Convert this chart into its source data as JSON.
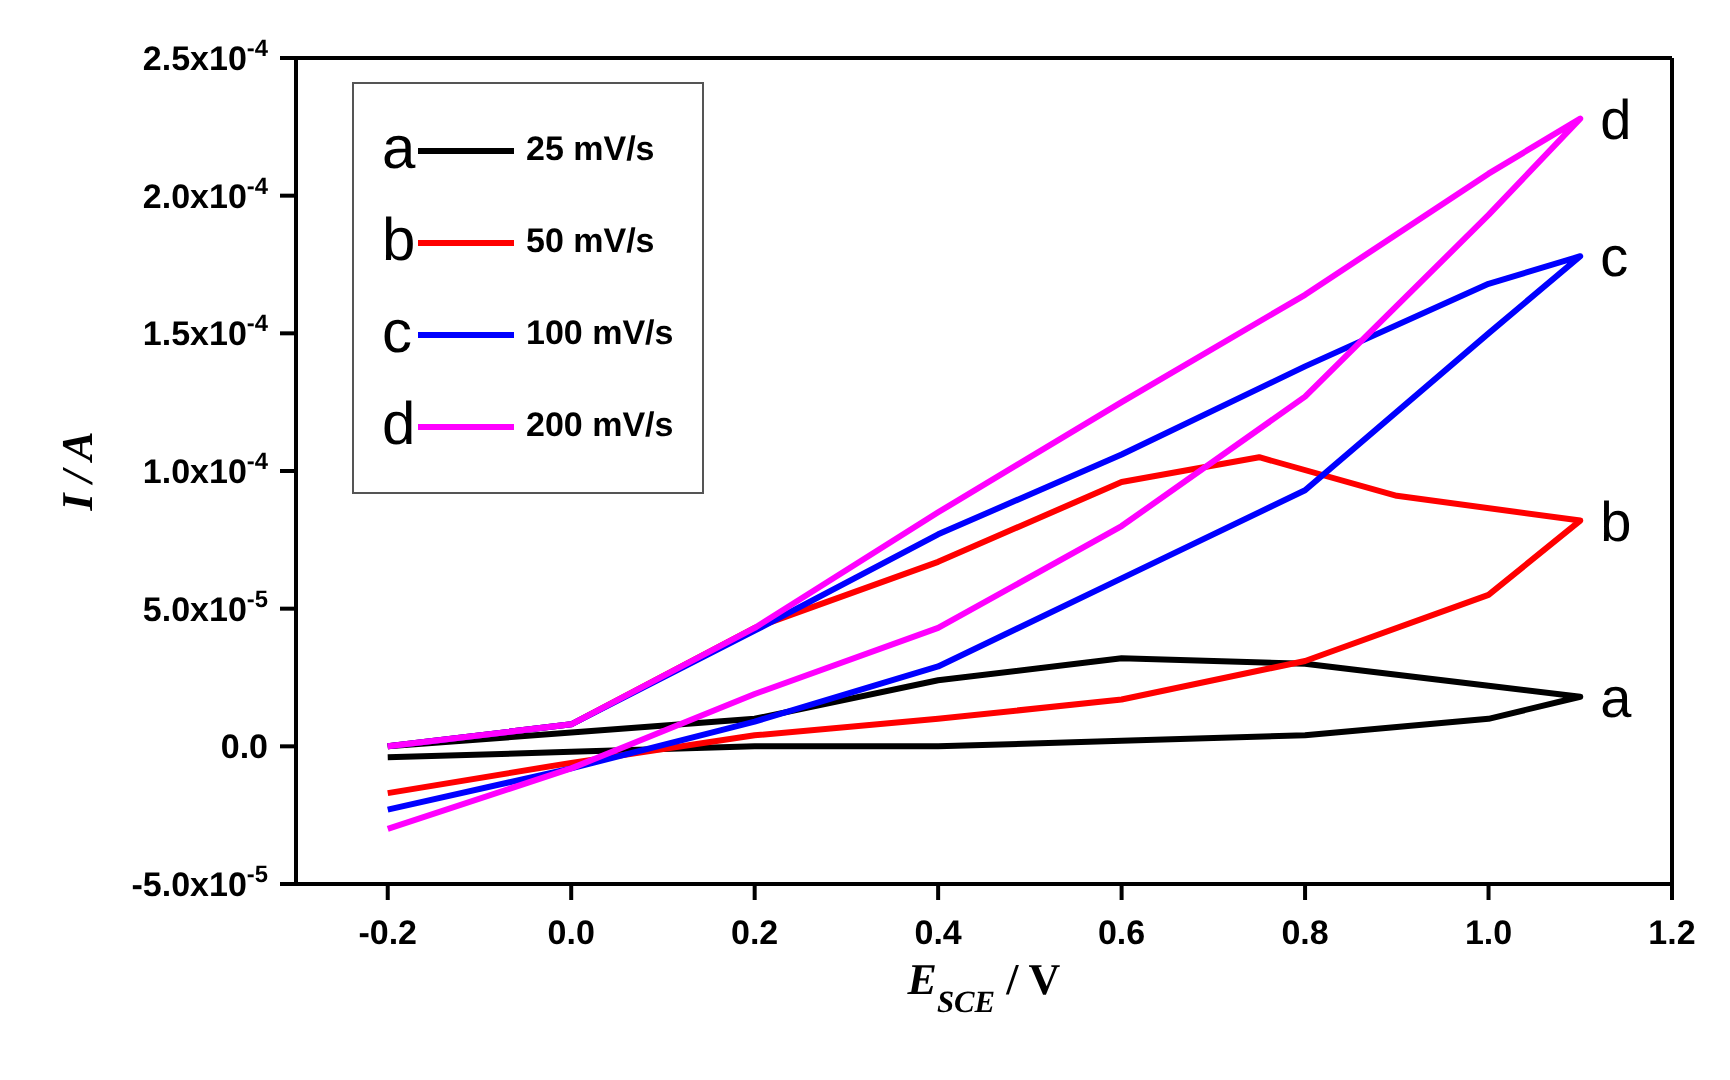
{
  "chart_data": {
    "type": "line",
    "xlabel": "E$_{SCE}$ / V",
    "ylabel": "I / A",
    "xlim": [
      -0.3,
      1.2
    ],
    "xticks": [
      {
        "value": -0.2,
        "label": "-0.2"
      },
      {
        "value": 0,
        "label": "0.0"
      },
      {
        "value": 0.2,
        "label": "0.2"
      },
      {
        "value": 0.4,
        "label": "0.4"
      },
      {
        "value": 0.6,
        "label": "0.6"
      },
      {
        "value": 0.8,
        "label": "0.8"
      },
      {
        "value": 1.0,
        "label": "1.0"
      },
      {
        "value": 1.2,
        "label": "1.2"
      }
    ],
    "ylim": [
      -5e-05,
      0.00025
    ],
    "yticks": [
      {
        "value": -5e-05,
        "label": "-5.0x10$^{-5}$"
      },
      {
        "value": 0,
        "label": "0.0"
      },
      {
        "value": 5e-05,
        "label": "5.0x10$^{-5}$"
      },
      {
        "value": 0.0001,
        "label": "1.0x10$^{-4}$"
      },
      {
        "value": 0.00015,
        "label": "1.5x10$^{-4}$"
      },
      {
        "value": 0.0002,
        "label": "2.0x10$^{-4}$"
      },
      {
        "value": 0.00025,
        "label": "2.5x10$^{-4}$"
      }
    ],
    "grid": false,
    "legend": "top left",
    "marker": "none",
    "line_style": "solid",
    "series": [
      {
        "name": "25 mV/s",
        "color": "#000000",
        "x": [
          -0.2,
          0.0,
          0.2,
          0.4,
          0.6,
          0.8,
          1.0,
          1.1,
          1.0,
          0.8,
          0.6,
          0.4,
          0.2,
          0.0,
          -0.2
        ],
        "values": [
          0,
          5e-06,
          1e-05,
          2.4e-05,
          3.2e-05,
          3e-05,
          2.2e-05,
          1.8e-05,
          1e-05,
          4e-06,
          2e-06,
          0,
          0,
          -2e-06,
          -4e-06
        ]
      },
      {
        "name": "50 mV/s",
        "color": "#ff0000",
        "x": [
          -0.2,
          0.0,
          0.2,
          0.4,
          0.6,
          0.75,
          0.9,
          1.1,
          1.0,
          0.8,
          0.6,
          0.4,
          0.2,
          0.0,
          -0.2
        ],
        "values": [
          0,
          8e-06,
          4.3e-05,
          6.7e-05,
          9.6e-05,
          0.000105,
          9.1e-05,
          8.2e-05,
          5.5e-05,
          3.1e-05,
          1.7e-05,
          1e-05,
          4e-06,
          -6e-06,
          -1.7e-05
        ]
      },
      {
        "name": "100 mV/s",
        "color": "#0000ff",
        "x": [
          -0.2,
          0.0,
          0.2,
          0.4,
          0.6,
          0.8,
          1.0,
          1.1,
          1.0,
          0.8,
          0.6,
          0.4,
          0.2,
          0.0,
          -0.2
        ],
        "values": [
          0,
          8e-06,
          4.2e-05,
          7.7e-05,
          0.000106,
          0.000138,
          0.000168,
          0.000178,
          0.00015,
          9.3e-05,
          6.1e-05,
          2.9e-05,
          9e-06,
          -8e-06,
          -2.3e-05
        ]
      },
      {
        "name": "200 mV/s",
        "color": "#ff00ff",
        "x": [
          -0.2,
          0.0,
          0.2,
          0.4,
          0.6,
          0.8,
          1.0,
          1.1,
          1.0,
          0.8,
          0.6,
          0.4,
          0.2,
          0.0,
          -0.2
        ],
        "values": [
          0,
          8e-06,
          4.3e-05,
          8.5e-05,
          0.000125,
          0.000164,
          0.000208,
          0.000228,
          0.000193,
          0.000127,
          8e-05,
          4.3e-05,
          1.9e-05,
          -8e-06,
          -3e-05
        ]
      }
    ],
    "annotations": [
      "a",
      "b",
      "c",
      "d"
    ]
  }
}
